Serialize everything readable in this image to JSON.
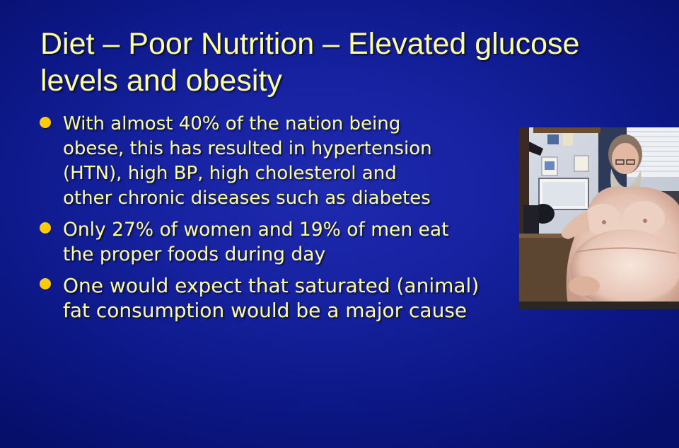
{
  "slide": {
    "title_line1": "Diet – Poor Nutrition – Elevated glucose",
    "title_line2": "levels and obesity",
    "bullets": [
      {
        "lines": [
          "With almost 40% of the nation being",
          "obese, this has resulted in hypertension",
          "(HTN), high BP, high cholesterol and",
          "other chronic diseases such as diabetes"
        ]
      },
      {
        "lines": [
          "Only 27% of women and 19% of men eat",
          "the proper foods during day"
        ]
      },
      {
        "lines": [
          "One would expect that saturated (animal)",
          "fat consumption would be a major cause"
        ]
      }
    ],
    "colors": {
      "background": "#1622a0",
      "text": "#ffff99",
      "bullet": "#ffcc00"
    },
    "image": {
      "icon": "obese-man-photo"
    }
  }
}
